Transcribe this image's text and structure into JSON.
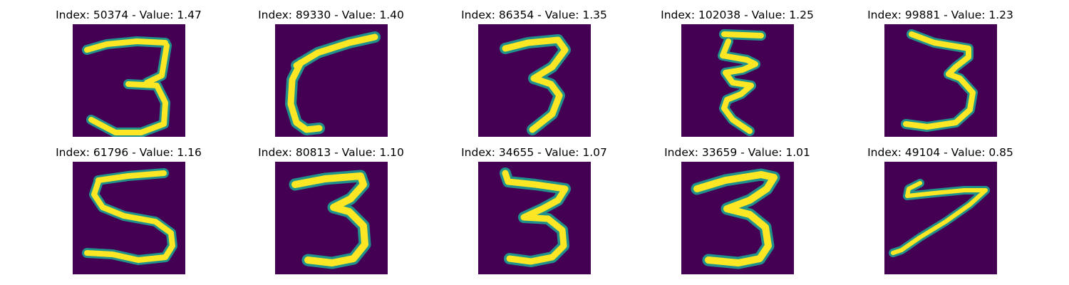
{
  "colors": {
    "background": "#440154",
    "mid": "#21918c",
    "high": "#fde725"
  },
  "panels": [
    {
      "title": "Index: 50374 - Value: 1.47",
      "glyph": "3"
    },
    {
      "title": "Index: 89330 - Value: 1.40",
      "glyph": "stroke-like digit"
    },
    {
      "title": "Index: 86354 - Value: 1.35",
      "glyph": "3"
    },
    {
      "title": "Index: 102038 - Value: 1.25",
      "glyph": "3"
    },
    {
      "title": "Index: 99881 - Value: 1.23",
      "glyph": "3"
    },
    {
      "title": "Index: 61796 - Value: 1.16",
      "glyph": "5"
    },
    {
      "title": "Index: 80813 - Value: 1.10",
      "glyph": "3"
    },
    {
      "title": "Index: 34655 - Value: 1.07",
      "glyph": "3"
    },
    {
      "title": "Index: 33659 - Value: 1.01",
      "glyph": "3"
    },
    {
      "title": "Index: 49104 - Value: 0.85",
      "glyph": "7"
    }
  ]
}
